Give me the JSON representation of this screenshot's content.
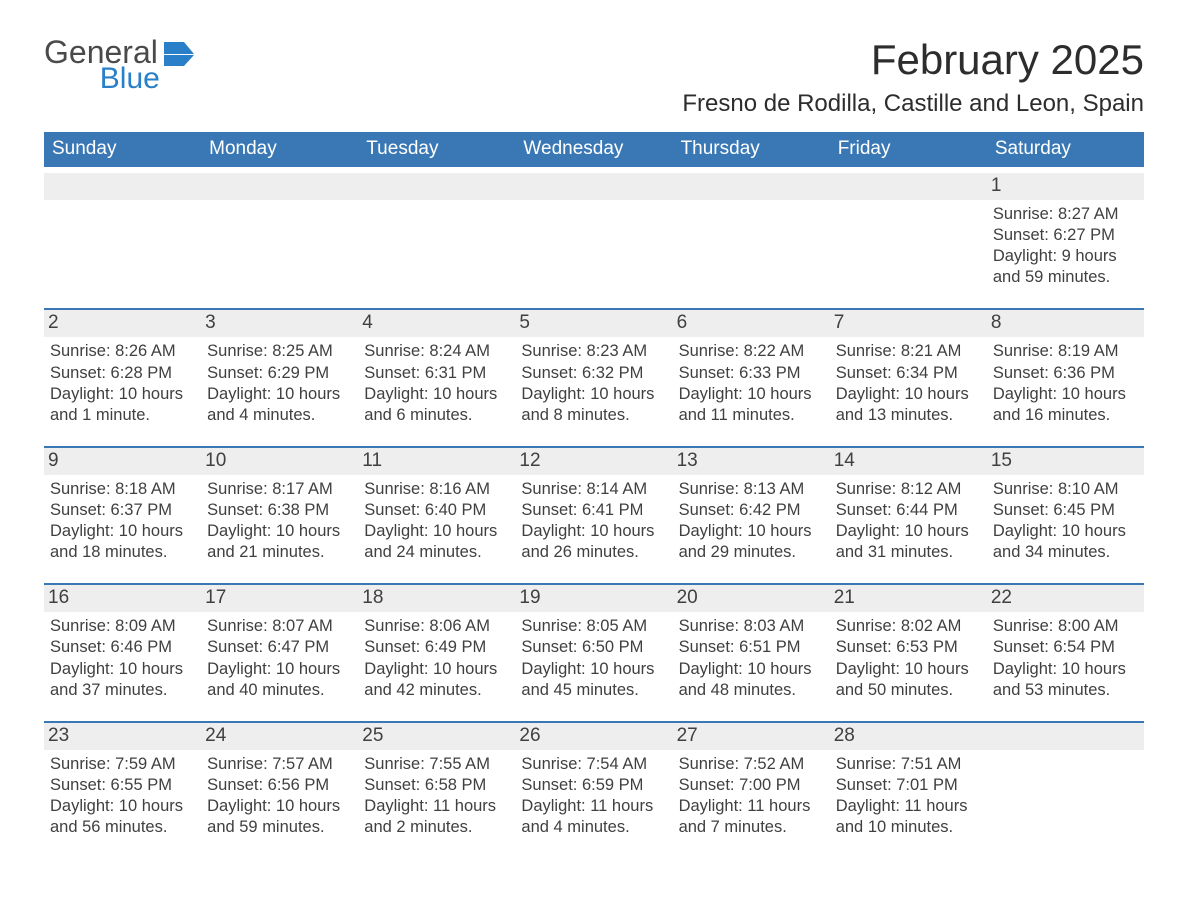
{
  "logo": {
    "word1": "General",
    "word2": "Blue"
  },
  "title": "February 2025",
  "location": "Fresno de Rodilla, Castille and Leon, Spain",
  "colors": {
    "header_blue": "#3a78b5",
    "day_bg": "#eeeeee",
    "text": "#404040",
    "logo_gray": "#4a4a4a",
    "logo_blue": "#2a7fc9",
    "background": "#ffffff"
  },
  "layout": {
    "type": "calendar",
    "columns": 7,
    "rows": 5,
    "first_day_column": 6
  },
  "weekdays": [
    "Sunday",
    "Monday",
    "Tuesday",
    "Wednesday",
    "Thursday",
    "Friday",
    "Saturday"
  ],
  "days": [
    {
      "n": 1,
      "sunrise": "8:27 AM",
      "sunset": "6:27 PM",
      "daylight": "9 hours and 59 minutes."
    },
    {
      "n": 2,
      "sunrise": "8:26 AM",
      "sunset": "6:28 PM",
      "daylight": "10 hours and 1 minute."
    },
    {
      "n": 3,
      "sunrise": "8:25 AM",
      "sunset": "6:29 PM",
      "daylight": "10 hours and 4 minutes."
    },
    {
      "n": 4,
      "sunrise": "8:24 AM",
      "sunset": "6:31 PM",
      "daylight": "10 hours and 6 minutes."
    },
    {
      "n": 5,
      "sunrise": "8:23 AM",
      "sunset": "6:32 PM",
      "daylight": "10 hours and 8 minutes."
    },
    {
      "n": 6,
      "sunrise": "8:22 AM",
      "sunset": "6:33 PM",
      "daylight": "10 hours and 11 minutes."
    },
    {
      "n": 7,
      "sunrise": "8:21 AM",
      "sunset": "6:34 PM",
      "daylight": "10 hours and 13 minutes."
    },
    {
      "n": 8,
      "sunrise": "8:19 AM",
      "sunset": "6:36 PM",
      "daylight": "10 hours and 16 minutes."
    },
    {
      "n": 9,
      "sunrise": "8:18 AM",
      "sunset": "6:37 PM",
      "daylight": "10 hours and 18 minutes."
    },
    {
      "n": 10,
      "sunrise": "8:17 AM",
      "sunset": "6:38 PM",
      "daylight": "10 hours and 21 minutes."
    },
    {
      "n": 11,
      "sunrise": "8:16 AM",
      "sunset": "6:40 PM",
      "daylight": "10 hours and 24 minutes."
    },
    {
      "n": 12,
      "sunrise": "8:14 AM",
      "sunset": "6:41 PM",
      "daylight": "10 hours and 26 minutes."
    },
    {
      "n": 13,
      "sunrise": "8:13 AM",
      "sunset": "6:42 PM",
      "daylight": "10 hours and 29 minutes."
    },
    {
      "n": 14,
      "sunrise": "8:12 AM",
      "sunset": "6:44 PM",
      "daylight": "10 hours and 31 minutes."
    },
    {
      "n": 15,
      "sunrise": "8:10 AM",
      "sunset": "6:45 PM",
      "daylight": "10 hours and 34 minutes."
    },
    {
      "n": 16,
      "sunrise": "8:09 AM",
      "sunset": "6:46 PM",
      "daylight": "10 hours and 37 minutes."
    },
    {
      "n": 17,
      "sunrise": "8:07 AM",
      "sunset": "6:47 PM",
      "daylight": "10 hours and 40 minutes."
    },
    {
      "n": 18,
      "sunrise": "8:06 AM",
      "sunset": "6:49 PM",
      "daylight": "10 hours and 42 minutes."
    },
    {
      "n": 19,
      "sunrise": "8:05 AM",
      "sunset": "6:50 PM",
      "daylight": "10 hours and 45 minutes."
    },
    {
      "n": 20,
      "sunrise": "8:03 AM",
      "sunset": "6:51 PM",
      "daylight": "10 hours and 48 minutes."
    },
    {
      "n": 21,
      "sunrise": "8:02 AM",
      "sunset": "6:53 PM",
      "daylight": "10 hours and 50 minutes."
    },
    {
      "n": 22,
      "sunrise": "8:00 AM",
      "sunset": "6:54 PM",
      "daylight": "10 hours and 53 minutes."
    },
    {
      "n": 23,
      "sunrise": "7:59 AM",
      "sunset": "6:55 PM",
      "daylight": "10 hours and 56 minutes."
    },
    {
      "n": 24,
      "sunrise": "7:57 AM",
      "sunset": "6:56 PM",
      "daylight": "10 hours and 59 minutes."
    },
    {
      "n": 25,
      "sunrise": "7:55 AM",
      "sunset": "6:58 PM",
      "daylight": "11 hours and 2 minutes."
    },
    {
      "n": 26,
      "sunrise": "7:54 AM",
      "sunset": "6:59 PM",
      "daylight": "11 hours and 4 minutes."
    },
    {
      "n": 27,
      "sunrise": "7:52 AM",
      "sunset": "7:00 PM",
      "daylight": "11 hours and 7 minutes."
    },
    {
      "n": 28,
      "sunrise": "7:51 AM",
      "sunset": "7:01 PM",
      "daylight": "11 hours and 10 minutes."
    }
  ],
  "labels": {
    "sunrise": "Sunrise: ",
    "sunset": "Sunset: ",
    "daylight": "Daylight: "
  }
}
